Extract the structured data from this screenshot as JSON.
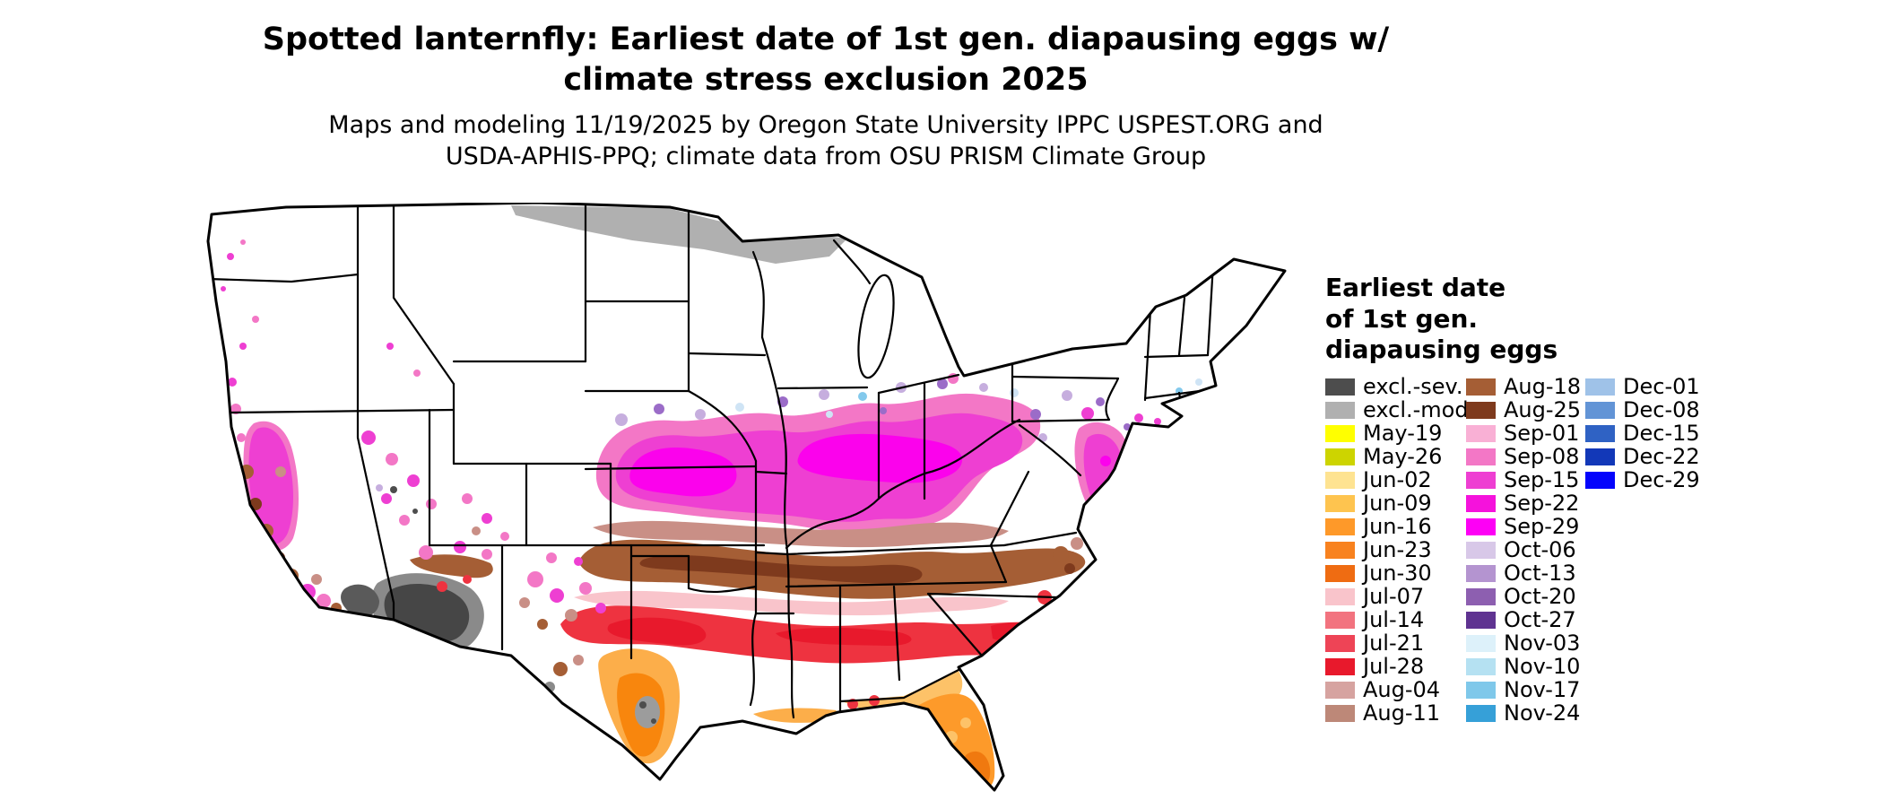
{
  "title": {
    "line1": "Spotted lanternfly: Earliest date of 1st gen. diapausing eggs w/",
    "line2": "climate stress exclusion 2025"
  },
  "subtitle": {
    "line1": "Maps and modeling 11/19/2025 by Oregon State University IPPC USPEST.ORG and",
    "line2": "USDA-APHIS-PPQ; climate data from OSU PRISM Climate Group"
  },
  "legend": {
    "title_lines": [
      "Earliest date",
      "of 1st gen.",
      "diapausing eggs"
    ],
    "columns": [
      [
        {
          "label": "excl.-sev.",
          "color": "#4d4d4d"
        },
        {
          "label": "excl.-mod.",
          "color": "#b0b0b0"
        },
        {
          "label": "May-19",
          "color": "#ffff00"
        },
        {
          "label": "May-26",
          "color": "#cdd400"
        },
        {
          "label": "Jun-02",
          "color": "#fee391"
        },
        {
          "label": "Jun-09",
          "color": "#fec44f"
        },
        {
          "label": "Jun-16",
          "color": "#fe9929"
        },
        {
          "label": "Jun-23",
          "color": "#f8821f"
        },
        {
          "label": "Jun-30",
          "color": "#ef6c12"
        },
        {
          "label": "Jul-07",
          "color": "#f9c4cb"
        },
        {
          "label": "Jul-14",
          "color": "#f2737f"
        },
        {
          "label": "Jul-21",
          "color": "#ee4456"
        },
        {
          "label": "Jul-28",
          "color": "#e8192c"
        },
        {
          "label": "Aug-04",
          "color": "#d6a3a0"
        },
        {
          "label": "Aug-11",
          "color": "#bd8878"
        }
      ],
      [
        {
          "label": "Aug-18",
          "color": "#a55e35"
        },
        {
          "label": "Aug-25",
          "color": "#7e3a1d"
        },
        {
          "label": "Sep-01",
          "color": "#f9b0d5"
        },
        {
          "label": "Sep-08",
          "color": "#f377c6"
        },
        {
          "label": "Sep-15",
          "color": "#ee3fd2"
        },
        {
          "label": "Sep-22",
          "color": "#f512dc"
        },
        {
          "label": "Sep-29",
          "color": "#fd00f5"
        },
        {
          "label": "Oct-06",
          "color": "#d8c8e8"
        },
        {
          "label": "Oct-13",
          "color": "#b494d0"
        },
        {
          "label": "Oct-20",
          "color": "#8d5fb0"
        },
        {
          "label": "Oct-27",
          "color": "#5f3391"
        },
        {
          "label": "Nov-03",
          "color": "#ddf1fa"
        },
        {
          "label": "Nov-10",
          "color": "#b5e1f2"
        },
        {
          "label": "Nov-17",
          "color": "#7fc8ea"
        },
        {
          "label": "Nov-24",
          "color": "#36a0d8"
        }
      ],
      [
        {
          "label": "Dec-01",
          "color": "#9fc2e8"
        },
        {
          "label": "Dec-08",
          "color": "#6294d6"
        },
        {
          "label": "Dec-15",
          "color": "#2f62c4"
        },
        {
          "label": "Dec-22",
          "color": "#1238b8"
        },
        {
          "label": "Dec-29",
          "color": "#0404fc"
        }
      ]
    ]
  },
  "map": {
    "region": "Continental United States",
    "kind": "raster choropleth of earliest date of first-generation diapausing eggs"
  }
}
